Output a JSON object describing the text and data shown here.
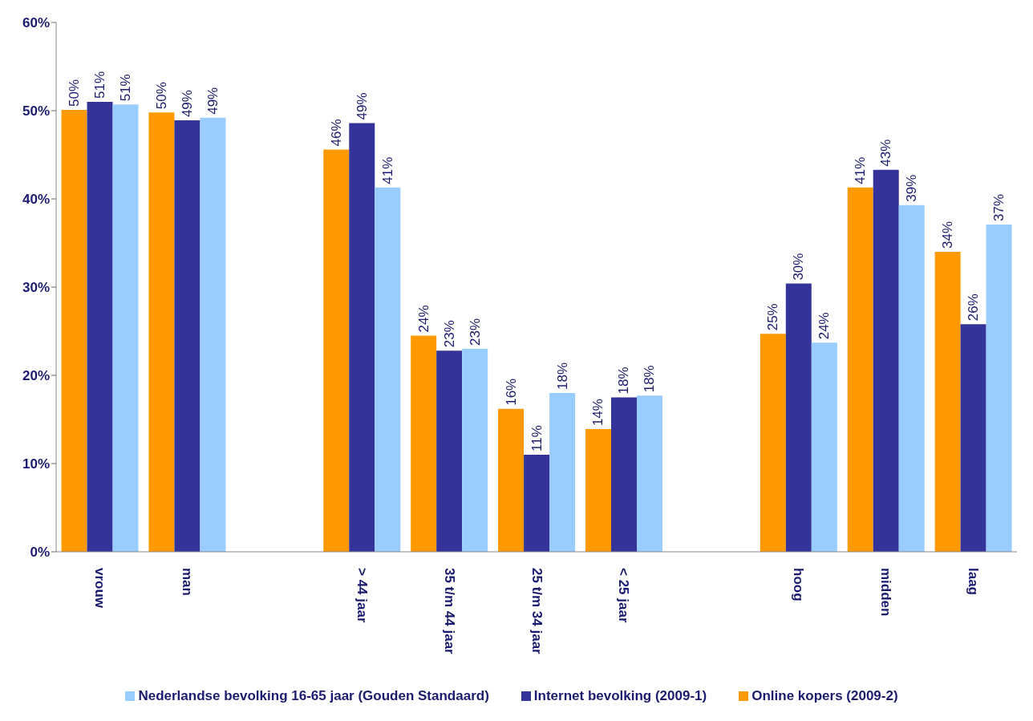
{
  "chart_data": {
    "type": "bar",
    "categories": [
      "vrouw",
      "man",
      null,
      "> 44 jaar",
      "35 t/m 44 jaar",
      "25 t/m 34 jaar",
      "< 25 jaar",
      null,
      "hoog",
      "midden",
      "laag"
    ],
    "series": [
      {
        "name": "Online kopers (2009-2)",
        "color": "#ff9900",
        "values": [
          50.1,
          49.8,
          null,
          45.6,
          24.5,
          16.2,
          13.9,
          null,
          24.7,
          41.3,
          34.0
        ],
        "value_labels": [
          "50%",
          "50%",
          null,
          "46%",
          "24%",
          "16%",
          "14%",
          null,
          "25%",
          "41%",
          "34%"
        ]
      },
      {
        "name": "Internet bevolking (2009-1)",
        "color": "#333399",
        "values": [
          51.0,
          48.9,
          null,
          48.6,
          22.8,
          11.0,
          17.5,
          null,
          30.4,
          43.3,
          25.8
        ],
        "value_labels": [
          "51%",
          "49%",
          null,
          "49%",
          "23%",
          "11%",
          "18%",
          null,
          "30%",
          "43%",
          "26%"
        ]
      },
      {
        "name": "Nederlandse bevolking 16-65 jaar (Gouden Standaard)",
        "color": "#99ccff",
        "values": [
          50.7,
          49.2,
          null,
          41.3,
          23.0,
          18.0,
          17.7,
          null,
          23.7,
          39.3,
          37.1
        ],
        "value_labels": [
          "51%",
          "49%",
          null,
          "41%",
          "23%",
          "18%",
          "18%",
          null,
          "24%",
          "39%",
          "37%"
        ]
      }
    ],
    "ylim": [
      0,
      60
    ],
    "yticks": [
      {
        "value": 0,
        "label": "0%"
      },
      {
        "value": 10,
        "label": "10%"
      },
      {
        "value": 20,
        "label": "20%"
      },
      {
        "value": 30,
        "label": "30%"
      },
      {
        "value": 40,
        "label": "40%"
      },
      {
        "value": 50,
        "label": "50%"
      },
      {
        "value": 60,
        "label": "60%"
      }
    ],
    "grid": false,
    "legend": "bottom"
  }
}
